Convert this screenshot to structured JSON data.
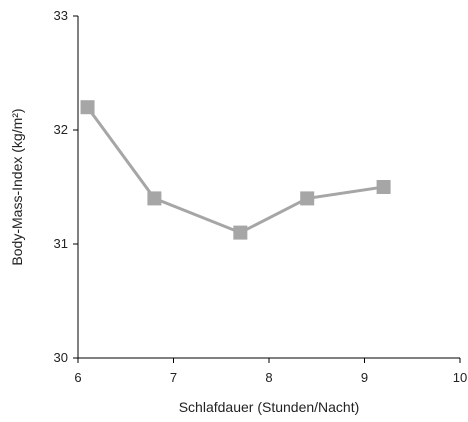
{
  "chart_data": {
    "type": "line",
    "xlabel": "Schlafdauer (Stunden/Nacht)",
    "ylabel": "Body-Mass-Index (kg/m²)",
    "xlim": [
      6,
      10
    ],
    "ylim": [
      30,
      33
    ],
    "x_ticks": [
      "6",
      "7",
      "8",
      "9",
      "10"
    ],
    "y_ticks": [
      "30",
      "31",
      "32",
      "33"
    ],
    "grid": false,
    "series": [
      {
        "x": [
          6.1,
          6.8,
          7.7,
          8.4,
          9.2
        ],
        "y": [
          32.2,
          31.4,
          31.1,
          31.4,
          31.5
        ],
        "color": "#a6a6a6",
        "marker": "square"
      }
    ]
  }
}
